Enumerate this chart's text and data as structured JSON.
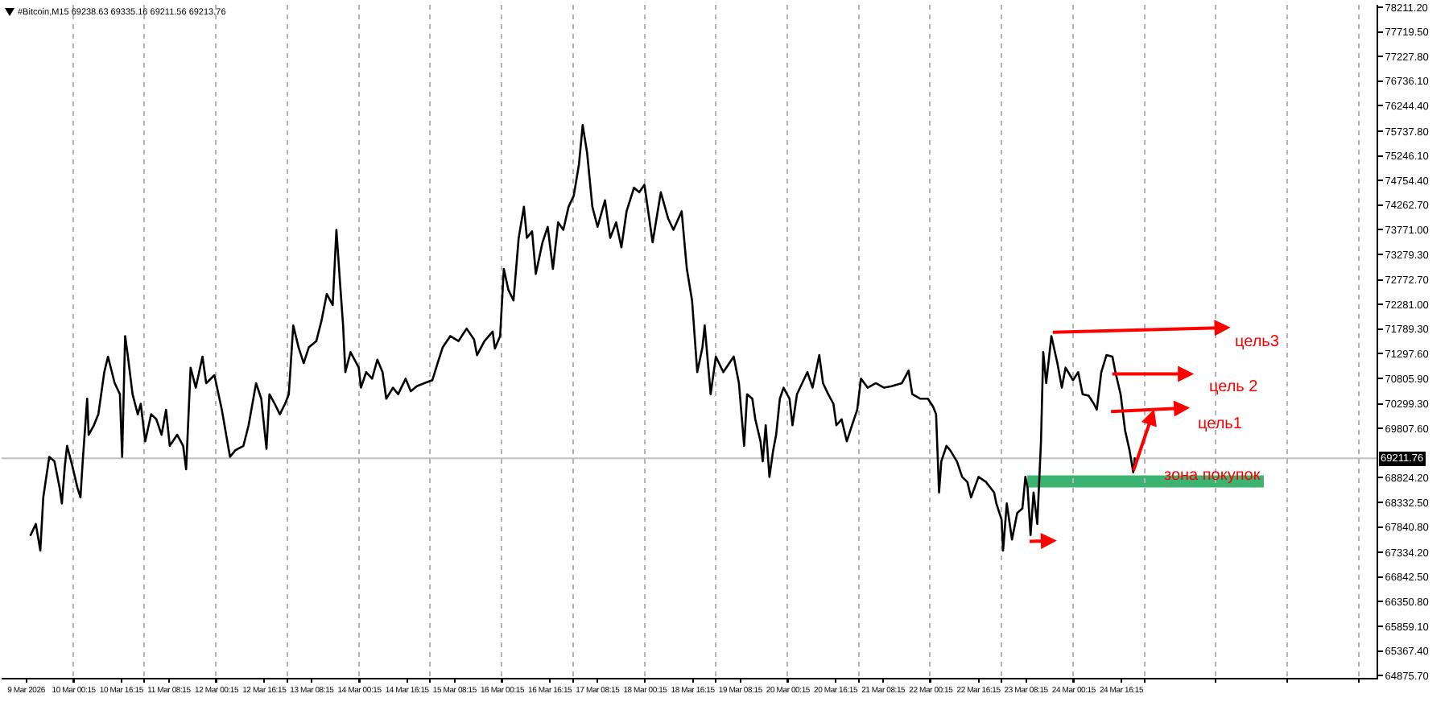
{
  "chart_data": {
    "type": "line",
    "title": "#Bitcoin,M15 69238.63 69335.16 69211.56 69213.76",
    "x": [
      "2026-03-09T09:45",
      "2026-03-09T11:30",
      "2026-03-09T13:00",
      "2026-03-09T14:00",
      "2026-03-09T16:00",
      "2026-03-09T17:45",
      "2026-03-09T19:30",
      "2026-03-09T20:15",
      "2026-03-09T21:15",
      "2026-03-09T22:00",
      "2026-03-09T23:45",
      "2026-03-10T01:30",
      "2026-03-10T02:30",
      "2026-03-10T03:15",
      "2026-03-10T04:45",
      "2026-03-10T05:15",
      "2026-03-10T07:00",
      "2026-03-10T08:30",
      "2026-03-10T10:30",
      "2026-03-10T11:45",
      "2026-03-10T14:00",
      "2026-03-10T15:45",
      "2026-03-10T16:30",
      "2026-03-10T17:30",
      "2026-03-10T18:15",
      "2026-03-10T20:00",
      "2026-03-10T21:45",
      "2026-03-10T22:45",
      "2026-03-11T00:15",
      "2026-03-11T02:15",
      "2026-03-11T04:00",
      "2026-03-11T05:45",
      "2026-03-11T07:15",
      "2026-03-11T08:30",
      "2026-03-11T11:00",
      "2026-03-11T13:00",
      "2026-03-11T14:00",
      "2026-03-11T15:30",
      "2026-03-11T17:15",
      "2026-03-11T19:30",
      "2026-03-11T20:45",
      "2026-03-11T23:30",
      "2026-03-12T02:00",
      "2026-03-12T04:45",
      "2026-03-12T06:30",
      "2026-03-12T09:15",
      "2026-03-12T11:00",
      "2026-03-12T13:30",
      "2026-03-12T15:15",
      "2026-03-12T17:00",
      "2026-03-12T18:00",
      "2026-03-12T19:45",
      "2026-03-12T21:30",
      "2026-03-12T23:15",
      "2026-03-13T00:30",
      "2026-03-13T02:00",
      "2026-03-13T03:45",
      "2026-03-13T05:30",
      "2026-03-13T07:15",
      "2026-03-13T09:45",
      "2026-03-13T11:30",
      "2026-03-13T13:15",
      "2026-03-13T15:15",
      "2026-03-13T16:30",
      "2026-03-13T17:45",
      "2026-03-13T18:45",
      "2026-03-13T19:30",
      "2026-03-13T21:15",
      "2026-03-14T00:00",
      "2026-03-14T00:45",
      "2026-03-14T02:30",
      "2026-03-14T04:30",
      "2026-03-14T06:15",
      "2026-03-14T08:00",
      "2026-03-14T09:15",
      "2026-03-14T11:30",
      "2026-03-14T13:15",
      "2026-03-14T15:45",
      "2026-03-14T17:30",
      "2026-03-14T19:30",
      "2026-03-14T22:00",
      "2026-03-15T00:45",
      "2026-03-15T02:30",
      "2026-03-15T04:15",
      "2026-03-15T06:45",
      "2026-03-15T09:30",
      "2026-03-15T12:15",
      "2026-03-15T14:45",
      "2026-03-15T15:45",
      "2026-03-15T18:15",
      "2026-03-15T21:00",
      "2026-03-15T21:45",
      "2026-03-15T23:30",
      "2026-03-16T00:45",
      "2026-03-16T02:15",
      "2026-03-16T04:00",
      "2026-03-16T05:45",
      "2026-03-16T07:30",
      "2026-03-16T08:30",
      "2026-03-16T10:15",
      "2026-03-16T11:30",
      "2026-03-16T13:45",
      "2026-03-16T15:30",
      "2026-03-16T17:15",
      "2026-03-16T19:00",
      "2026-03-16T20:45",
      "2026-03-16T22:30",
      "2026-03-17T00:15",
      "2026-03-17T02:00",
      "2026-03-17T03:15",
      "2026-03-17T04:45",
      "2026-03-17T06:30",
      "2026-03-17T08:15",
      "2026-03-17T10:45",
      "2026-03-17T12:30",
      "2026-03-17T14:30",
      "2026-03-17T16:15",
      "2026-03-17T18:00",
      "2026-03-17T20:30",
      "2026-03-17T22:15",
      "2026-03-18T00:00",
      "2026-03-18T02:45",
      "2026-03-18T05:30",
      "2026-03-18T08:00",
      "2026-03-18T09:45",
      "2026-03-18T12:30",
      "2026-03-18T14:15",
      "2026-03-18T16:00",
      "2026-03-18T17:45",
      "2026-03-18T19:30",
      "2026-03-18T20:15",
      "2026-03-18T22:15",
      "2026-03-19T00:00",
      "2026-03-19T02:30",
      "2026-03-19T06:00",
      "2026-03-19T07:45",
      "2026-03-19T09:30",
      "2026-03-19T10:30",
      "2026-03-19T12:15",
      "2026-03-19T13:15",
      "2026-03-19T15:00",
      "2026-03-19T15:45",
      "2026-03-19T16:45",
      "2026-03-19T18:00",
      "2026-03-19T19:15",
      "2026-03-19T20:15",
      "2026-03-19T21:30",
      "2026-03-19T22:45",
      "2026-03-20T00:45",
      "2026-03-20T01:45",
      "2026-03-20T03:15",
      "2026-03-20T05:00",
      "2026-03-20T06:45",
      "2026-03-20T08:30",
      "2026-03-20T10:45",
      "2026-03-20T12:00",
      "2026-03-20T13:45",
      "2026-03-20T15:30",
      "2026-03-20T16:30",
      "2026-03-20T18:15",
      "2026-03-20T20:00",
      "2026-03-20T21:45",
      "2026-03-20T23:30",
      "2026-03-21T00:45",
      "2026-03-21T03:00",
      "2026-03-21T05:45",
      "2026-03-21T08:30",
      "2026-03-21T11:00",
      "2026-03-21T14:30",
      "2026-03-21T16:45",
      "2026-03-21T18:00",
      "2026-03-21T20:45",
      "2026-03-21T23:15",
      "2026-03-22T01:00",
      "2026-03-22T02:00",
      "2026-03-22T03:00",
      "2026-03-22T03:45",
      "2026-03-22T05:30",
      "2026-03-22T06:45",
      "2026-03-22T09:00",
      "2026-03-22T10:45",
      "2026-03-22T12:30",
      "2026-03-22T13:45",
      "2026-03-22T16:15",
      "2026-03-22T18:45",
      "2026-03-22T21:30",
      "2026-03-22T22:15",
      "2026-03-23T00:00",
      "2026-03-23T00:30",
      "2026-03-23T01:45",
      "2026-03-23T03:30",
      "2026-03-23T05:15",
      "2026-03-23T07:00",
      "2026-03-23T08:00",
      "2026-03-23T08:45",
      "2026-03-23T09:45",
      "2026-03-23T10:45",
      "2026-03-23T12:00",
      "2026-03-23T13:15",
      "2026-03-23T14:00",
      "2026-03-23T15:00",
      "2026-03-23T16:45",
      "2026-03-23T18:45",
      "2026-03-23T20:15",
      "2026-03-23T21:30",
      "2026-03-24T00:00",
      "2026-03-24T01:45",
      "2026-03-24T03:15",
      "2026-03-24T05:15",
      "2026-03-24T07:00",
      "2026-03-24T08:00",
      "2026-03-24T09:30",
      "2026-03-24T11:15",
      "2026-03-24T13:15",
      "2026-03-24T14:15",
      "2026-03-24T16:00",
      "2026-03-24T17:30",
      "2026-03-24T19:00",
      "2026-03-24T20:15",
      "2026-03-24T20:45"
    ],
    "series": [
      {
        "color": "#000000",
        "values": [
          67680,
          67900,
          67370,
          68430,
          69240,
          69150,
          68620,
          68310,
          69060,
          69460,
          69060,
          68620,
          68430,
          69150,
          70400,
          69680,
          69870,
          70090,
          70930,
          71240,
          70710,
          70490,
          69240,
          71650,
          71330,
          70490,
          70090,
          70300,
          69550,
          70090,
          69990,
          69680,
          70180,
          69460,
          69680,
          69460,
          68990,
          71020,
          70620,
          71240,
          70710,
          70870,
          70180,
          69240,
          69370,
          69460,
          69870,
          70710,
          70400,
          69400,
          70490,
          70300,
          70090,
          70300,
          70490,
          71860,
          71430,
          71110,
          71430,
          71550,
          71960,
          72490,
          72270,
          73770,
          72680,
          71860,
          70930,
          71330,
          71020,
          70620,
          70930,
          70800,
          71180,
          70930,
          70400,
          70620,
          70490,
          70800,
          70550,
          70650,
          70710,
          70770,
          71110,
          71430,
          71650,
          71550,
          71800,
          71580,
          71270,
          71550,
          71740,
          71400,
          71650,
          72990,
          72580,
          72360,
          73610,
          74230,
          73610,
          73740,
          72890,
          73520,
          73830,
          72990,
          73920,
          73770,
          74230,
          74450,
          75080,
          75860,
          75300,
          74230,
          73830,
          74360,
          73610,
          73920,
          73420,
          74140,
          74610,
          74520,
          74670,
          73520,
          74520,
          73990,
          73770,
          74140,
          72990,
          72360,
          70930,
          71430,
          71860,
          70490,
          71240,
          70930,
          71240,
          70710,
          69460,
          70490,
          70400,
          69990,
          69550,
          69150,
          69870,
          68840,
          69370,
          69680,
          70400,
          70620,
          70400,
          69870,
          70490,
          70710,
          70930,
          70620,
          71270,
          70710,
          70490,
          70300,
          69870,
          69990,
          69550,
          69870,
          70180,
          70800,
          70620,
          70710,
          70620,
          70650,
          70710,
          70960,
          70490,
          70400,
          70400,
          70240,
          70090,
          68530,
          69150,
          69460,
          69370,
          69150,
          68840,
          68740,
          68430,
          68840,
          68740,
          68530,
          68310,
          67990,
          67370,
          68310,
          67590,
          68120,
          68210,
          68840,
          68620,
          67680,
          68530,
          67900,
          69550,
          71330,
          70710,
          71650,
          71110,
          70620,
          71020,
          70770,
          70930,
          70490,
          70460,
          70300,
          70180,
          70930,
          71270,
          71240,
          70930,
          70490,
          69770,
          69370,
          68930,
          69210
        ]
      }
    ],
    "xlim": [
      "2026-03-09T00:00",
      "2026-03-28T06:00"
    ],
    "xticks": [
      {
        "value": "2026-03-09T08:15",
        "label": "9 Mar 2026"
      },
      {
        "value": "2026-03-10T00:15",
        "label": "10 Mar 00:15"
      },
      {
        "value": "2026-03-10T16:15",
        "label": "10 Mar 16:15"
      },
      {
        "value": "2026-03-11T08:15",
        "label": "11 Mar 08:15"
      },
      {
        "value": "2026-03-12T00:15",
        "label": "12 Mar 00:15"
      },
      {
        "value": "2026-03-12T16:15",
        "label": "12 Mar 16:15"
      },
      {
        "value": "2026-03-13T08:15",
        "label": "13 Mar 08:15"
      },
      {
        "value": "2026-03-14T00:15",
        "label": "14 Mar 00:15"
      },
      {
        "value": "2026-03-14T16:15",
        "label": "14 Mar 16:15"
      },
      {
        "value": "2026-03-15T08:15",
        "label": "15 Mar 08:15"
      },
      {
        "value": "2026-03-16T00:15",
        "label": "16 Mar 00:15"
      },
      {
        "value": "2026-03-16T16:15",
        "label": "16 Mar 16:15"
      },
      {
        "value": "2026-03-17T08:15",
        "label": "17 Mar 08:15"
      },
      {
        "value": "2026-03-18T00:15",
        "label": "18 Mar 00:15"
      },
      {
        "value": "2026-03-18T16:15",
        "label": "18 Mar 16:15"
      },
      {
        "value": "2026-03-19T08:15",
        "label": "19 Mar 08:15"
      },
      {
        "value": "2026-03-20T00:15",
        "label": "20 Mar 00:15"
      },
      {
        "value": "2026-03-20T16:15",
        "label": "20 Mar 16:15"
      },
      {
        "value": "2026-03-21T08:15",
        "label": "21 Mar 08:15"
      },
      {
        "value": "2026-03-22T00:15",
        "label": "22 Mar 00:15"
      },
      {
        "value": "2026-03-22T16:15",
        "label": "22 Mar 16:15"
      },
      {
        "value": "2026-03-23T08:15",
        "label": "23 Mar 08:15"
      },
      {
        "value": "2026-03-24T00:15",
        "label": "24 Mar 00:15"
      },
      {
        "value": "2026-03-24T16:15",
        "label": "24 Mar 16:15"
      },
      {
        "value": "2026-03-10T00:00",
        "label": null
      },
      {
        "value": "2026-03-11T00:00",
        "label": null
      },
      {
        "value": "2026-03-12T00:00",
        "label": null
      },
      {
        "value": "2026-03-13T00:00",
        "label": null
      },
      {
        "value": "2026-03-14T00:00",
        "label": null
      },
      {
        "value": "2026-03-15T00:00",
        "label": null
      },
      {
        "value": "2026-03-16T00:00",
        "label": null
      },
      {
        "value": "2026-03-17T00:00",
        "label": null
      },
      {
        "value": "2026-03-18T00:00",
        "label": null
      },
      {
        "value": "2026-03-19T00:00",
        "label": null
      },
      {
        "value": "2026-03-20T00:00",
        "label": null
      },
      {
        "value": "2026-03-21T00:00",
        "label": null
      },
      {
        "value": "2026-03-22T00:00",
        "label": null
      },
      {
        "value": "2026-03-23T00:00",
        "label": null
      },
      {
        "value": "2026-03-24T00:00",
        "label": null
      },
      {
        "value": "2026-03-25T00:00",
        "label": null
      },
      {
        "value": "2026-03-26T00:00",
        "label": null
      },
      {
        "value": "2026-03-27T00:00",
        "label": null
      },
      {
        "value": "2026-03-28T00:00",
        "label": null
      }
    ],
    "ylim": [
      64830,
      78260
    ],
    "yticks": [
      {
        "value": 78211.2,
        "label": "78211.20"
      },
      {
        "value": 77719.5,
        "label": "77719.50"
      },
      {
        "value": 77227.8,
        "label": "77227.80"
      },
      {
        "value": 76736.1,
        "label": "76736.10"
      },
      {
        "value": 76244.4,
        "label": "76244.40"
      },
      {
        "value": 75737.8,
        "label": "75737.80"
      },
      {
        "value": 75246.1,
        "label": "75246.10"
      },
      {
        "value": 74754.4,
        "label": "74754.40"
      },
      {
        "value": 74262.7,
        "label": "74262.70"
      },
      {
        "value": 73771,
        "label": "73771.00"
      },
      {
        "value": 73279.3,
        "label": "73279.30"
      },
      {
        "value": 72772.7,
        "label": "72772.70"
      },
      {
        "value": 72281,
        "label": "72281.00"
      },
      {
        "value": 71789.3,
        "label": "71789.30"
      },
      {
        "value": 71297.6,
        "label": "71297.60"
      },
      {
        "value": 70805.9,
        "label": "70805.90"
      },
      {
        "value": 70299.3,
        "label": "70299.30"
      },
      {
        "value": 69807.6,
        "label": "69807.60"
      },
      {
        "value": 68824.2,
        "label": "68824.20"
      },
      {
        "value": 68332.5,
        "label": "68332.50"
      },
      {
        "value": 67840.8,
        "label": "67840.80"
      },
      {
        "value": 67334.2,
        "label": "67334.20"
      },
      {
        "value": 66842.5,
        "label": "66842.50"
      },
      {
        "value": 66350.8,
        "label": "66350.80"
      },
      {
        "value": 65859.1,
        "label": "65859.10"
      },
      {
        "value": 65367.4,
        "label": "65367.40"
      },
      {
        "value": 64875.7,
        "label": "64875.70"
      }
    ],
    "grid": "x",
    "ref_lines": [
      {
        "axis": "y",
        "value": 69211.76,
        "label": "69211.76",
        "color": "#c0c0c0"
      }
    ],
    "bands": [
      {
        "axis": "y",
        "from": 68630,
        "to": 68870,
        "label": "зона покупок",
        "color": "#3cb371"
      }
    ],
    "annotations": [
      "цель3",
      "цель 2",
      "цель1"
    ]
  }
}
